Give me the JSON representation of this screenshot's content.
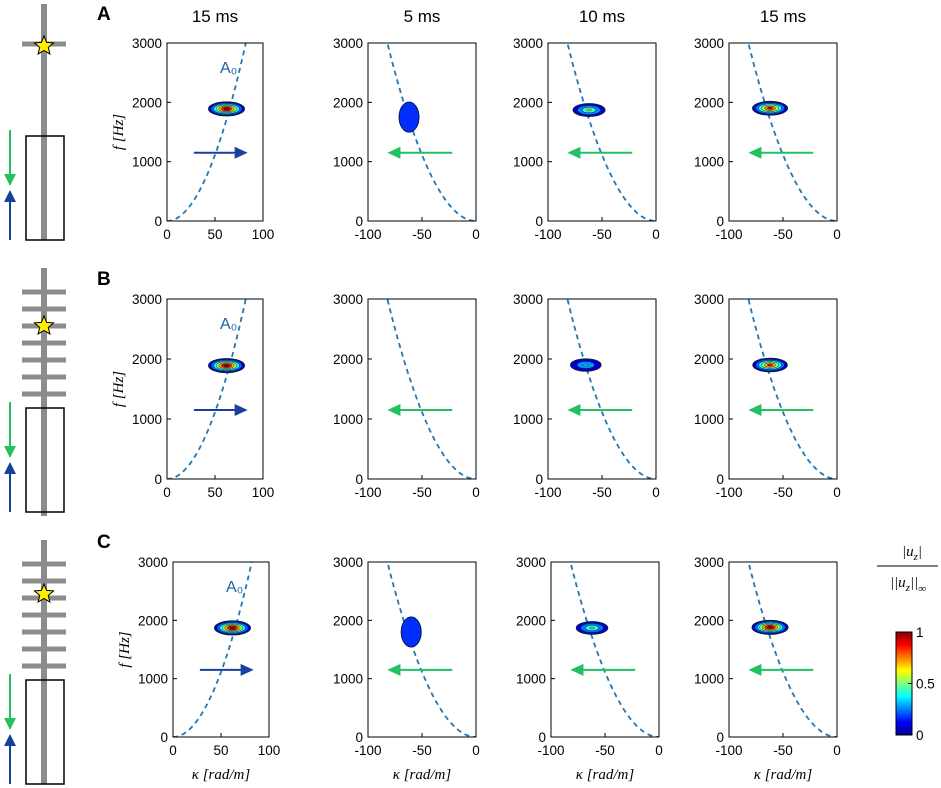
{
  "chart_data": {
    "type": "contour",
    "description_rows": [
      "A",
      "B",
      "C"
    ],
    "column_titles": [
      "15 ms",
      "5 ms",
      "10 ms",
      "15 ms"
    ],
    "rows": [
      {
        "label": "A",
        "panels": [
          {
            "title": "15 ms",
            "xlim": [
              0,
              100
            ],
            "xticks": [
              0,
              50,
              100
            ],
            "ylim": [
              0,
              3000
            ],
            "yticks": [
              0,
              1000,
              2000,
              3000
            ],
            "mode_label": "A₀",
            "direction": "right",
            "arrow_color": "#1a3f9e",
            "contour": {
              "center_k": 62,
              "center_f": 1890,
              "peak": 1.0
            }
          },
          {
            "title": "5 ms",
            "xlim": [
              -100,
              0
            ],
            "xticks": [
              -100,
              -50,
              0
            ],
            "ylim": [
              0,
              3000
            ],
            "yticks": [
              0,
              1000,
              2000,
              3000
            ],
            "direction": "left",
            "arrow_color": "#22c060",
            "contour": {
              "center_k": -62,
              "center_f": 1750,
              "peak": 0.2
            }
          },
          {
            "title": "10 ms",
            "xlim": [
              -100,
              0
            ],
            "xticks": [
              -100,
              -50,
              0
            ],
            "ylim": [
              0,
              3000
            ],
            "yticks": [
              0,
              1000,
              2000,
              3000
            ],
            "direction": "left",
            "arrow_color": "#22c060",
            "contour": {
              "center_k": -62,
              "center_f": 1870,
              "peak": 0.6
            }
          },
          {
            "title": "15 ms",
            "xlim": [
              -100,
              0
            ],
            "xticks": [
              -100,
              -50,
              0
            ],
            "ylim": [
              0,
              3000
            ],
            "yticks": [
              0,
              1000,
              2000,
              3000
            ],
            "direction": "left",
            "arrow_color": "#22c060",
            "contour": {
              "center_k": -62,
              "center_f": 1900,
              "peak": 0.9
            }
          }
        ]
      },
      {
        "label": "B",
        "panels": [
          {
            "title": "",
            "xlim": [
              0,
              100
            ],
            "xticks": [
              0,
              50,
              100
            ],
            "ylim": [
              0,
              3000
            ],
            "yticks": [
              0,
              1000,
              2000,
              3000
            ],
            "mode_label": "A₀",
            "direction": "right",
            "arrow_color": "#1a3f9e",
            "contour": {
              "center_k": 62,
              "center_f": 1890,
              "peak": 1.0
            }
          },
          {
            "title": "",
            "xlim": [
              -100,
              0
            ],
            "xticks": [
              -100,
              -50,
              0
            ],
            "ylim": [
              0,
              3000
            ],
            "yticks": [
              0,
              1000,
              2000,
              3000
            ],
            "direction": "left",
            "arrow_color": "#22c060",
            "contour": null
          },
          {
            "title": "",
            "xlim": [
              -100,
              0
            ],
            "xticks": [
              -100,
              -50,
              0
            ],
            "ylim": [
              0,
              3000
            ],
            "yticks": [
              0,
              1000,
              2000,
              3000
            ],
            "direction": "left",
            "arrow_color": "#22c060",
            "contour": {
              "center_k": -65,
              "center_f": 1900,
              "peak": 0.45
            }
          },
          {
            "title": "",
            "xlim": [
              -100,
              0
            ],
            "xticks": [
              -100,
              -50,
              0
            ],
            "ylim": [
              0,
              3000
            ],
            "yticks": [
              0,
              1000,
              2000,
              3000
            ],
            "direction": "left",
            "arrow_color": "#22c060",
            "contour": {
              "center_k": -62,
              "center_f": 1900,
              "peak": 0.85
            }
          }
        ]
      },
      {
        "label": "C",
        "panels": [
          {
            "title": "",
            "xlim": [
              0,
              100
            ],
            "xticks": [
              0,
              50,
              100
            ],
            "ylim": [
              0,
              3000
            ],
            "yticks": [
              0,
              1000,
              2000,
              3000
            ],
            "mode_label": "A₀",
            "direction": "right",
            "arrow_color": "#1a3f9e",
            "contour": {
              "center_k": 62,
              "center_f": 1870,
              "peak": 1.0
            }
          },
          {
            "title": "",
            "xlim": [
              -100,
              0
            ],
            "xticks": [
              -100,
              -50,
              0
            ],
            "ylim": [
              0,
              3000
            ],
            "yticks": [
              0,
              1000,
              2000,
              3000
            ],
            "direction": "left",
            "arrow_color": "#22c060",
            "contour": {
              "center_k": -60,
              "center_f": 1800,
              "peak": 0.2
            }
          },
          {
            "title": "",
            "xlim": [
              -100,
              0
            ],
            "xticks": [
              -100,
              -50,
              0
            ],
            "ylim": [
              0,
              3000
            ],
            "yticks": [
              0,
              1000,
              2000,
              3000
            ],
            "direction": "left",
            "arrow_color": "#22c060",
            "contour": {
              "center_k": -62,
              "center_f": 1870,
              "peak": 0.55
            }
          },
          {
            "title": "",
            "xlim": [
              -100,
              0
            ],
            "xticks": [
              -100,
              -50,
              0
            ],
            "ylim": [
              0,
              3000
            ],
            "yticks": [
              0,
              1000,
              2000,
              3000
            ],
            "direction": "left",
            "arrow_color": "#22c060",
            "contour": {
              "center_k": -62,
              "center_f": 1880,
              "peak": 1.0
            }
          }
        ]
      }
    ],
    "ylabel": "f [Hz]",
    "xlabel": "κ [rad/m]",
    "dispersion_curve": "A0 flexural mode, dashed, f proportional to kappa squared (about 2850 Hz at |kappa| = 80 rad/m)",
    "colorbar": {
      "label": "|u_z| / ||u_z||_∞",
      "ticks": [
        0,
        0.5,
        1
      ],
      "colormap": "jet"
    }
  },
  "strings": {
    "ylabel_text": "f [Hz]",
    "xlabel_text": "κ [rad/m]",
    "cb_num": "|u",
    "cb_sub": "z",
    "cb_den_left": "||u",
    "cb_den_right": "||",
    "cb_inf": "∞",
    "mode_label": "A₀"
  },
  "colors": {
    "dispersion": "#1f78b4",
    "blue_arrow": "#1a3f9e",
    "green_arrow": "#22c060",
    "rod": "#8c8c8c",
    "star": "#ffee00"
  }
}
